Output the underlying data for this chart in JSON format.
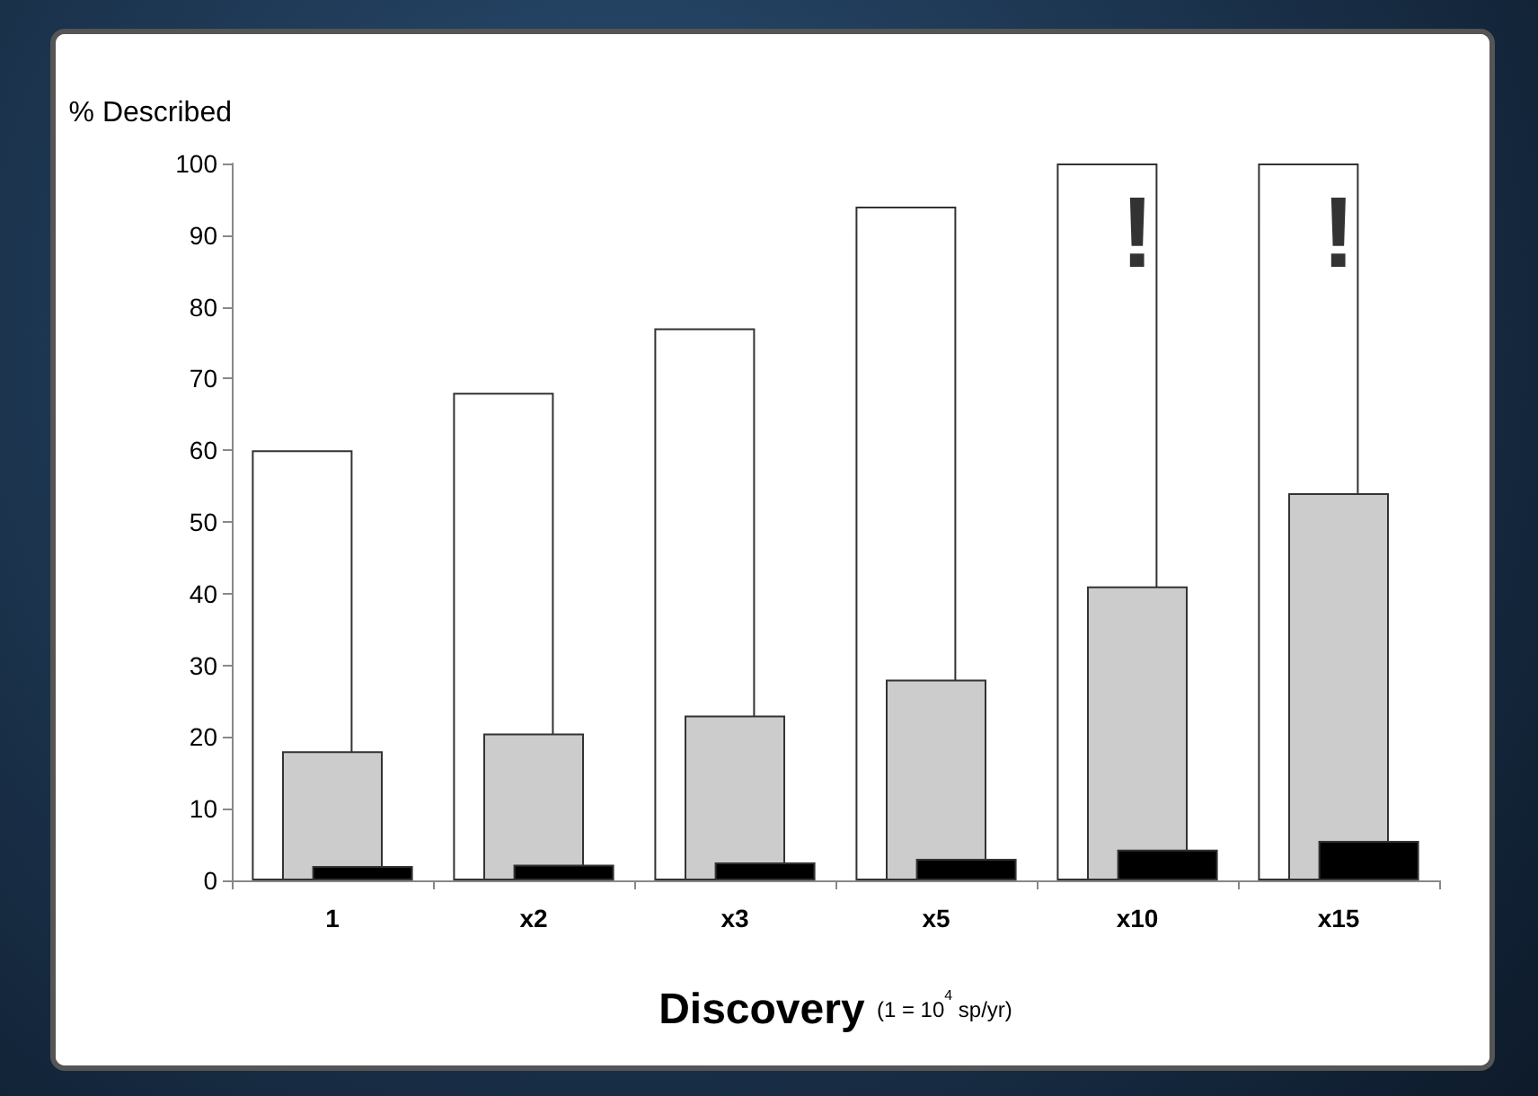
{
  "chart_data": {
    "type": "bar",
    "xlabel": "Discovery (1 = 10$^{4}$ sp/yr)",
    "ylabel": "% Described",
    "categories": [
      "1",
      "x2",
      "x3",
      "x5",
      "x10",
      "x15"
    ],
    "series": [
      {
        "color": "#ffffff",
        "values": [
          60,
          68,
          77,
          94,
          100,
          100
        ]
      },
      {
        "color": "#cccccc",
        "values": [
          18,
          20.5,
          23,
          28,
          41,
          54
        ]
      },
      {
        "color": "#000000",
        "values": [
          2,
          2.2,
          2.5,
          3,
          4.3,
          5.5
        ]
      }
    ],
    "ylim": [
      0,
      100
    ],
    "yticks": [
      0,
      10,
      20,
      30,
      40,
      50,
      60,
      70,
      80,
      90,
      100
    ],
    "annotations": [
      {
        "text": "!",
        "x": "x10",
        "y": 100
      },
      {
        "text": "!",
        "x": "x15",
        "y": 100
      }
    ]
  }
}
